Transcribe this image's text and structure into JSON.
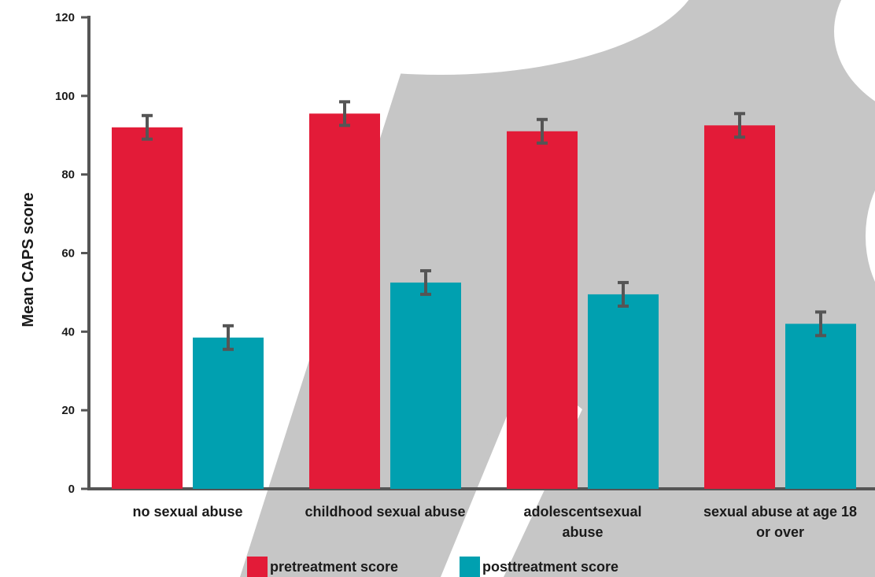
{
  "chart_data": {
    "type": "bar",
    "ylabel": "Mean CAPS score",
    "ylim": [
      0,
      120
    ],
    "yticks": [
      0,
      20,
      40,
      60,
      80,
      100,
      120
    ],
    "categories": [
      [
        "no sexual abuse"
      ],
      [
        "childhood sexual abuse"
      ],
      [
        "adolescentsexual",
        "abuse"
      ],
      [
        "sexual abuse at age 18",
        "or over"
      ]
    ],
    "series": [
      {
        "name": "pretreatment score",
        "color": "#e31b38",
        "values": [
          92,
          95.5,
          91,
          92.5
        ],
        "errors": [
          3,
          3,
          3,
          3
        ]
      },
      {
        "name": "posttreatment score",
        "color": "#00a0b0",
        "values": [
          38.5,
          52.5,
          49.5,
          42
        ],
        "errors": [
          3,
          3,
          3,
          3
        ]
      }
    ],
    "grid": false,
    "legend_position": "bottom"
  }
}
